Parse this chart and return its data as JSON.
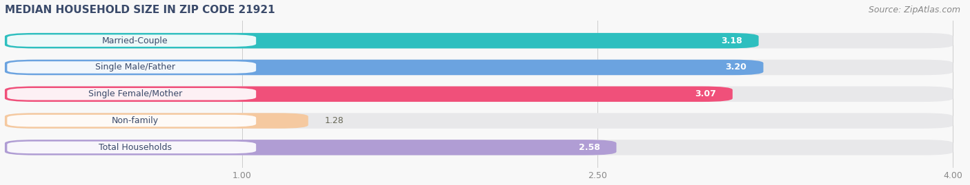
{
  "title": "MEDIAN HOUSEHOLD SIZE IN ZIP CODE 21921",
  "source": "Source: ZipAtlas.com",
  "categories": [
    "Married-Couple",
    "Single Male/Father",
    "Single Female/Mother",
    "Non-family",
    "Total Households"
  ],
  "values": [
    3.18,
    3.2,
    3.07,
    1.28,
    2.58
  ],
  "bar_colors": [
    "#2ebfbf",
    "#6ba3e0",
    "#f0507a",
    "#f5c9a0",
    "#b09dd4"
  ],
  "value_text_colors": [
    "#ffffff",
    "#ffffff",
    "#ffffff",
    "#888855",
    "#555577"
  ],
  "xlim_min": 0.0,
  "xlim_max": 4.0,
  "xticks": [
    1.0,
    2.5,
    4.0
  ],
  "title_fontsize": 11,
  "label_fontsize": 9,
  "value_fontsize": 9,
  "source_fontsize": 9,
  "bar_height": 0.58,
  "bar_gap": 0.42,
  "background_color": "#f8f8f8",
  "bar_bg_color": "#e8e8ea",
  "label_box_color": "#ffffff",
  "title_color": "#3a4a6a",
  "source_color": "#888888",
  "tick_color": "#888888"
}
